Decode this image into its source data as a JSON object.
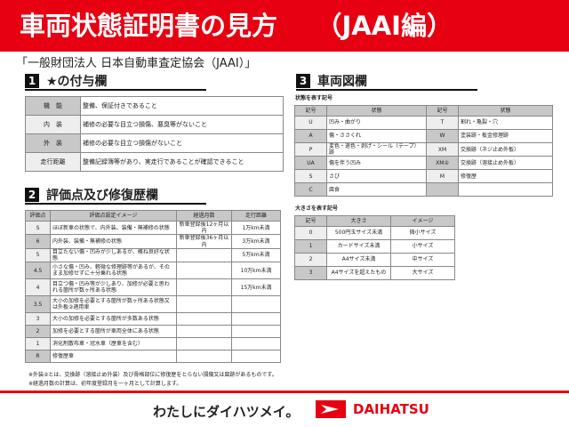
{
  "title": "車両状態証明書の見方　　（JAAI編）",
  "organization": "「一般財団法人 日本自動車査定協会（JAAI）」",
  "section1": {
    "num": "1",
    "title": "★の付与欄",
    "rows": [
      [
        "機　能",
        "整備、保証付きであること"
      ],
      [
        "内　装",
        "補修の必要な目立つ損傷、悪臭等がないこと"
      ],
      [
        "外　装",
        "補修の必要な目立つ損傷がないこと"
      ],
      [
        "走行距離",
        "整備記録簿等があり、実走行であることが確認できること"
      ]
    ]
  },
  "section2": {
    "num": "2",
    "title": "評価点及び修復歴欄",
    "headers": [
      "評価点",
      "評価点設定イメージ",
      "経過月数",
      "走行距離"
    ],
    "rows": [
      [
        "S",
        "ほぼ新車の状態で、内外装、装備・無補修の状態",
        "新車登録後12ヶ月以内",
        "1万km未満"
      ],
      [
        "6",
        "内外装、装備・無補修の状態",
        "新車登録後36ヶ月以内",
        "3万km未満"
      ],
      [
        "5",
        "目立たない傷・凹みが少しあるが、概ね良好な状態",
        "",
        "5万km未満"
      ],
      [
        "4.5",
        "小さな傷・凹み、軽微な修理跡等があるが、そのまま加修せずに十分乗れる状態",
        "",
        "10万km未満"
      ],
      [
        "4",
        "目立つ傷・凹み等が少しあり、加修が必要と思われる箇所が数ヶ所ある状態",
        "",
        "15万km未満"
      ],
      [
        "3.5",
        "大小の加修を必要とする箇所が数ヶ所ある状態又は外板②適用車",
        "",
        ""
      ],
      [
        "3",
        "大小の加修を必要とする箇所が多数ある状態",
        "",
        ""
      ],
      [
        "2",
        "加修を必要とする箇所が車両全体にある状態",
        "",
        ""
      ],
      [
        "1",
        "消化剤散布車・冠水車（歴車を含む）",
        "",
        ""
      ],
      [
        "R",
        "修復歴車",
        "",
        ""
      ]
    ],
    "notes": [
      "※外装②とは、交換跡（溶接止め外装）及び骨格部位に修復歴をとらない損傷又は腐跡があるものです。",
      "※経過月数の計算は、初年度登録月を一ヶ月として計算します。"
    ]
  },
  "section3": {
    "num": "3",
    "title": "車両図欄",
    "state_label": "状態を表す記号",
    "state_headers": [
      "記号",
      "状態",
      "記号",
      "状態"
    ],
    "state_rows": [
      [
        "U",
        "凹み・曲がり",
        "T",
        "割れ・亀裂・穴"
      ],
      [
        "A",
        "傷・ささくれ",
        "W",
        "塗装跡・板金修理跡"
      ],
      [
        "P",
        "変色・退色・剥げ・シール（テープ）跡",
        "XM",
        "交換跡（ネジ止め外板）"
      ],
      [
        "UA",
        "傷を伴う凹み",
        "XM②",
        "交換跡（溶接止め外板）"
      ],
      [
        "S",
        "さび",
        "M",
        "修復歴"
      ],
      [
        "C",
        "腐食",
        "",
        ""
      ]
    ],
    "size_label": "大きさを表す記号",
    "size_headers": [
      "記号",
      "大きさ",
      "イメージ"
    ],
    "size_rows": [
      [
        "0",
        "500円玉サイズ未満",
        "微小サイズ"
      ],
      [
        "1",
        "カードサイズ未満",
        "小サイズ"
      ],
      [
        "2",
        "A4サイズ未満",
        "中サイズ"
      ],
      [
        "3",
        "A4サイズを超えたもの",
        "大サイズ"
      ]
    ]
  },
  "footer": {
    "slogan": "わたしにダイハツメイ。",
    "brand": "DAIHATSU"
  },
  "colors": {
    "accent": "#e60012"
  }
}
